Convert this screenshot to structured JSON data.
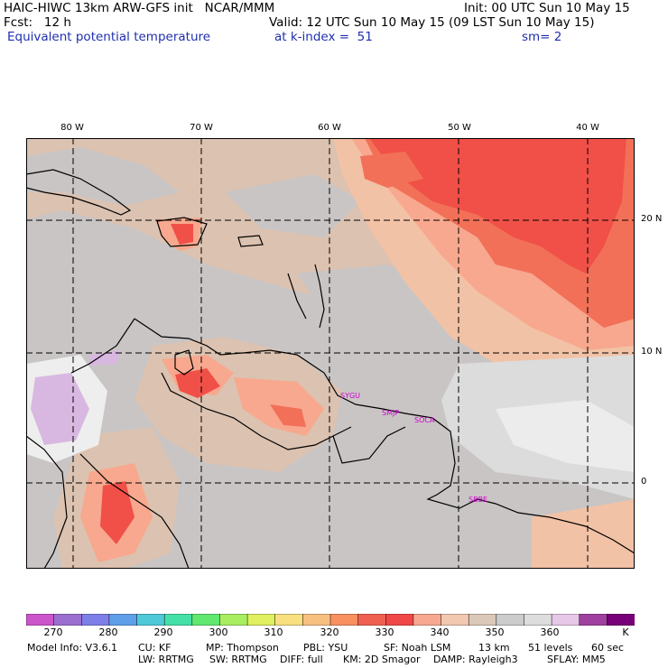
{
  "header": {
    "line1_left": "HAIC-HIWC 13km ARW-GFS init   NCAR/MMM",
    "line1_right": "Init: 00 UTC Sun 10 May 15",
    "line2_left": "Fcst:   12 h",
    "line2_right": "Valid: 12 UTC Sun 10 May 15 (09 LST Sun 10 May 15)",
    "line3_left": "Equivalent potential temperature",
    "line3_mid": "at k-index =  51",
    "line3_right": "sm= 2"
  },
  "map": {
    "longitude_labels": [
      "80 W",
      "70 W",
      "60 W",
      "50 W",
      "40 W"
    ],
    "latitude_labels": [
      "20 N",
      "10 N",
      "0"
    ],
    "station_labels": [
      "SYGU",
      "SMJP",
      "SOCA",
      "SBBE"
    ],
    "field": "Equivalent potential temperature",
    "colors": {
      "gray": "#c8c4c4",
      "light_gray": "#d8d4d4",
      "beige": "#dcc2b0",
      "peach": "#f2c2a6",
      "salmon": "#f7a88e",
      "orange_red": "#f27058",
      "red": "#f05048",
      "light_lavender": "#eeeeee",
      "lavender": "#d8b8e0",
      "station_text": "#d000d0"
    }
  },
  "colorbar": {
    "colors": [
      "#cc55cc",
      "#9a6fd0",
      "#7d7ee8",
      "#5f9ee8",
      "#4fc8d8",
      "#45e0a8",
      "#60e870",
      "#a8ee60",
      "#e0f060",
      "#f8e080",
      "#f8c080",
      "#f89060",
      "#f06050",
      "#f04848",
      "#f8a890",
      "#f2c8b0",
      "#dcc8b8",
      "#cccccc",
      "#dddddd",
      "#e8c8e8",
      "#a040a0",
      "#780078"
    ],
    "tick_labels": [
      "270",
      "280",
      "290",
      "300",
      "310",
      "320",
      "330",
      "340",
      "350",
      "360",
      "K"
    ]
  },
  "footer": {
    "line1": [
      "Model Info: V3.6.1",
      "CU: KF",
      "MP: Thompson",
      "PBL: YSU",
      "SF: Noah LSM",
      "13 km",
      "51 levels",
      "60 sec"
    ],
    "line2": [
      "LW: RRTMG",
      "SW: RRTMG",
      "DIFF: full",
      "KM: 2D Smagor",
      "DAMP: Rayleigh3",
      "SFLAY: MM5"
    ]
  }
}
